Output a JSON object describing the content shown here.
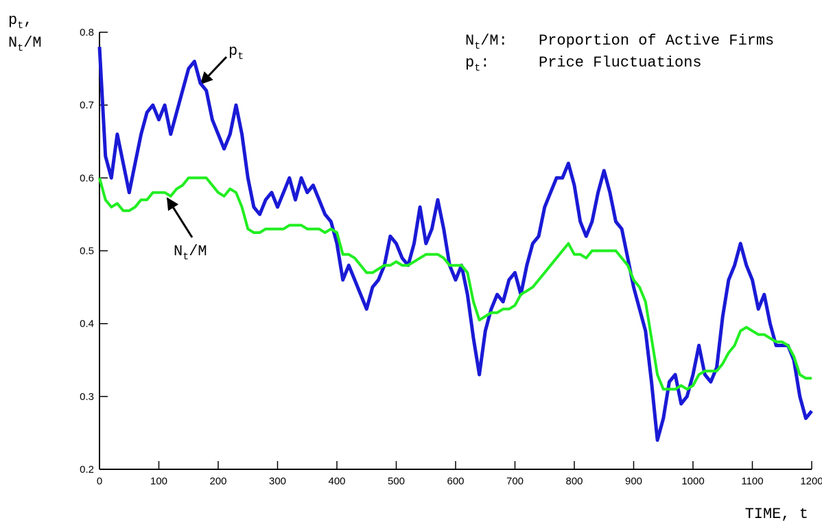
{
  "chart_data": {
    "type": "line",
    "y_label": [
      [
        "p",
        "t",
        ","
      ],
      [
        "N",
        "t",
        "/M"
      ]
    ],
    "x_label": "TIME, t",
    "x": [
      0,
      10,
      20,
      30,
      40,
      50,
      60,
      70,
      80,
      90,
      100,
      110,
      120,
      130,
      140,
      150,
      160,
      170,
      180,
      190,
      200,
      210,
      220,
      230,
      240,
      250,
      260,
      270,
      280,
      290,
      300,
      310,
      320,
      330,
      340,
      350,
      360,
      370,
      380,
      390,
      400,
      410,
      420,
      430,
      440,
      450,
      460,
      470,
      480,
      490,
      500,
      510,
      520,
      530,
      540,
      550,
      560,
      570,
      580,
      590,
      600,
      610,
      620,
      630,
      640,
      650,
      660,
      670,
      680,
      690,
      700,
      710,
      720,
      730,
      740,
      750,
      760,
      770,
      780,
      790,
      800,
      810,
      820,
      830,
      840,
      850,
      860,
      870,
      880,
      890,
      900,
      910,
      920,
      930,
      940,
      950,
      960,
      970,
      980,
      990,
      1000,
      1010,
      1020,
      1030,
      1040,
      1050,
      1060,
      1070,
      1080,
      1090,
      1100,
      1110,
      1120,
      1130,
      1140,
      1150,
      1160,
      1170,
      1180,
      1190,
      1200
    ],
    "series": [
      {
        "name": "Price Fluctuations",
        "key": [
          "p",
          "t",
          ":"
        ],
        "color": "#1a1ad6",
        "width": 5,
        "values": [
          0.78,
          0.63,
          0.6,
          0.66,
          0.62,
          0.58,
          0.62,
          0.66,
          0.69,
          0.7,
          0.68,
          0.7,
          0.66,
          0.69,
          0.72,
          0.75,
          0.76,
          0.73,
          0.72,
          0.68,
          0.66,
          0.64,
          0.66,
          0.7,
          0.66,
          0.6,
          0.56,
          0.55,
          0.57,
          0.58,
          0.56,
          0.58,
          0.6,
          0.57,
          0.6,
          0.58,
          0.59,
          0.57,
          0.55,
          0.54,
          0.51,
          0.46,
          0.48,
          0.46,
          0.44,
          0.42,
          0.45,
          0.46,
          0.48,
          0.52,
          0.51,
          0.49,
          0.48,
          0.51,
          0.56,
          0.51,
          0.53,
          0.57,
          0.53,
          0.48,
          0.46,
          0.48,
          0.44,
          0.38,
          0.33,
          0.39,
          0.42,
          0.44,
          0.43,
          0.46,
          0.47,
          0.44,
          0.48,
          0.51,
          0.52,
          0.56,
          0.58,
          0.6,
          0.6,
          0.62,
          0.59,
          0.54,
          0.52,
          0.54,
          0.58,
          0.61,
          0.58,
          0.54,
          0.53,
          0.49,
          0.45,
          0.42,
          0.39,
          0.32,
          0.24,
          0.27,
          0.32,
          0.33,
          0.29,
          0.3,
          0.33,
          0.37,
          0.33,
          0.32,
          0.34,
          0.41,
          0.46,
          0.48,
          0.51,
          0.48,
          0.46,
          0.42,
          0.44,
          0.4,
          0.37,
          0.37,
          0.37,
          0.35,
          0.3,
          0.27,
          0.28
        ]
      },
      {
        "name": "Proportion of Active Firms",
        "key": [
          "N",
          "t",
          "/M:"
        ],
        "color": "#22ee22",
        "width": 4,
        "values": [
          0.6,
          0.57,
          0.56,
          0.565,
          0.555,
          0.555,
          0.56,
          0.57,
          0.57,
          0.58,
          0.58,
          0.58,
          0.575,
          0.585,
          0.59,
          0.6,
          0.6,
          0.6,
          0.6,
          0.59,
          0.58,
          0.575,
          0.585,
          0.58,
          0.56,
          0.53,
          0.525,
          0.525,
          0.53,
          0.53,
          0.53,
          0.53,
          0.535,
          0.535,
          0.535,
          0.53,
          0.53,
          0.53,
          0.525,
          0.53,
          0.525,
          0.495,
          0.495,
          0.49,
          0.48,
          0.47,
          0.47,
          0.475,
          0.48,
          0.48,
          0.485,
          0.48,
          0.48,
          0.485,
          0.49,
          0.495,
          0.495,
          0.495,
          0.49,
          0.48,
          0.48,
          0.48,
          0.47,
          0.43,
          0.405,
          0.41,
          0.415,
          0.415,
          0.42,
          0.42,
          0.425,
          0.44,
          0.445,
          0.45,
          0.46,
          0.47,
          0.48,
          0.49,
          0.5,
          0.51,
          0.495,
          0.495,
          0.49,
          0.5,
          0.5,
          0.5,
          0.5,
          0.5,
          0.49,
          0.48,
          0.46,
          0.45,
          0.43,
          0.38,
          0.33,
          0.31,
          0.31,
          0.31,
          0.315,
          0.31,
          0.315,
          0.33,
          0.335,
          0.335,
          0.335,
          0.345,
          0.36,
          0.37,
          0.39,
          0.395,
          0.39,
          0.385,
          0.385,
          0.38,
          0.375,
          0.375,
          0.37,
          0.355,
          0.33,
          0.325,
          0.325
        ]
      }
    ],
    "annotations": [
      [
        "p",
        "t"
      ],
      [
        "N",
        "t",
        "/M"
      ]
    ],
    "xlim": [
      0,
      1200
    ],
    "xticks": [
      0,
      100,
      200,
      300,
      400,
      500,
      600,
      700,
      800,
      900,
      1000,
      1100,
      1200
    ],
    "ylim": [
      0.2,
      0.8
    ],
    "yticks": [
      0.2,
      0.3,
      0.4,
      0.5,
      0.6,
      0.7,
      0.8
    ]
  }
}
